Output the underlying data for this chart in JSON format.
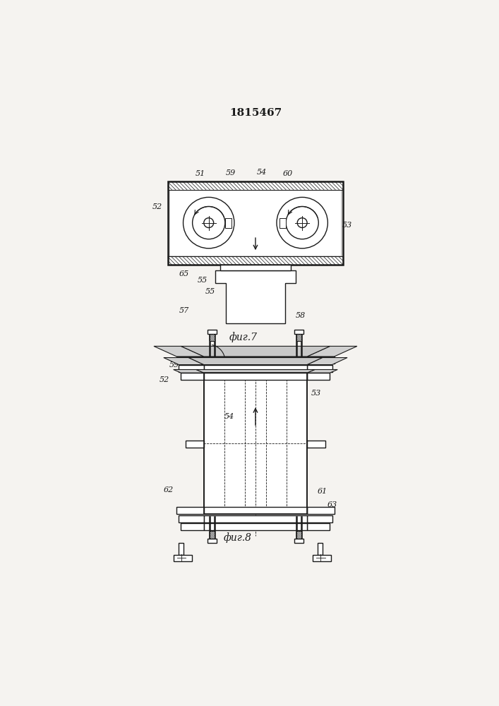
{
  "title": "1815467",
  "bg_color": "#f5f3f0",
  "line_color": "#1a1a1a",
  "fig7_label": "фиг.7",
  "fig8_label": "фиг.8"
}
